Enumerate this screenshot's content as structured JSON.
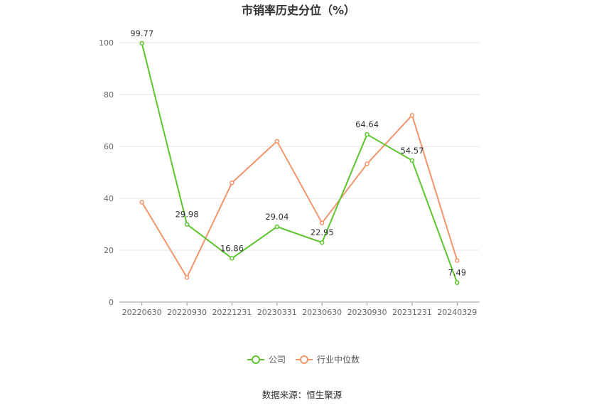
{
  "chart_data": {
    "type": "line",
    "title": "市销率历史分位（%）",
    "categories": [
      "20220630",
      "20220930",
      "20221231",
      "20230331",
      "20230630",
      "20230930",
      "20231231",
      "20240329"
    ],
    "series": [
      {
        "name": "公司",
        "color": "#5ec42b",
        "values": [
          99.77,
          29.98,
          16.86,
          29.04,
          22.95,
          64.64,
          54.57,
          7.49
        ],
        "labels": [
          "99.77",
          "29.98",
          "16.86",
          "29.04",
          "22.95",
          "64.64",
          "54.57",
          "7.49"
        ]
      },
      {
        "name": "行业中位数",
        "color": "#f0956c",
        "values": [
          38.5,
          9.5,
          46.0,
          62.0,
          30.5,
          53.3,
          72.0,
          16.0
        ]
      }
    ],
    "y_ticks": [
      "0",
      "20",
      "40",
      "60",
      "80",
      "100"
    ],
    "ylim": [
      0,
      100
    ],
    "grid": true,
    "legend_position": "bottom-center"
  },
  "source_text": "数据来源：恒生聚源"
}
